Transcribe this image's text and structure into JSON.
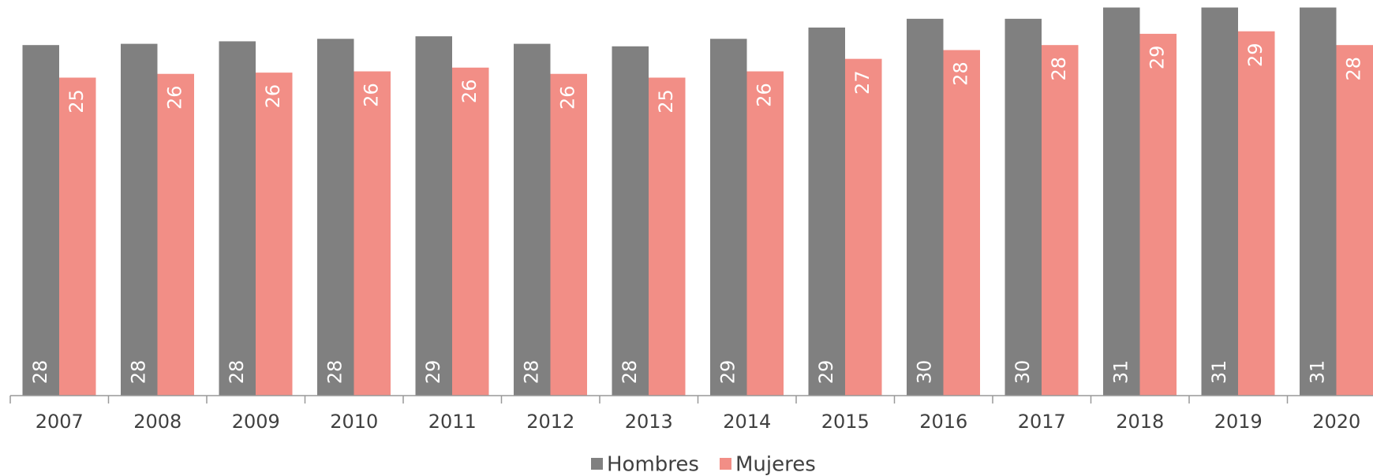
{
  "chart_data": {
    "type": "bar",
    "categories": [
      "2007",
      "2008",
      "2009",
      "2010",
      "2011",
      "2012",
      "2013",
      "2014",
      "2015",
      "2016",
      "2017",
      "2018",
      "2019",
      "2020"
    ],
    "series": [
      {
        "name": "Hombres",
        "color": "#808080",
        "values": [
          28.0,
          28.1,
          28.3,
          28.5,
          28.7,
          28.1,
          27.9,
          28.5,
          29.4,
          30.1,
          30.1,
          31.0,
          31.0,
          31.0
        ],
        "value_labels": [
          "28",
          "28",
          "28",
          "28",
          "29",
          "28",
          "28",
          "29",
          "29",
          "30",
          "30",
          "31",
          "31",
          "31"
        ]
      },
      {
        "name": "Mujeres",
        "color": "#f28e86",
        "values": [
          25.4,
          25.7,
          25.8,
          25.9,
          26.2,
          25.7,
          25.4,
          25.9,
          26.9,
          27.6,
          28.0,
          28.9,
          29.1,
          28.0
        ],
        "value_labels": [
          "25",
          "26",
          "26",
          "26",
          "26",
          "26",
          "25",
          "26",
          "27",
          "28",
          "28",
          "29",
          "29",
          "28"
        ]
      }
    ],
    "ylim": [
      0,
      31.6
    ]
  }
}
